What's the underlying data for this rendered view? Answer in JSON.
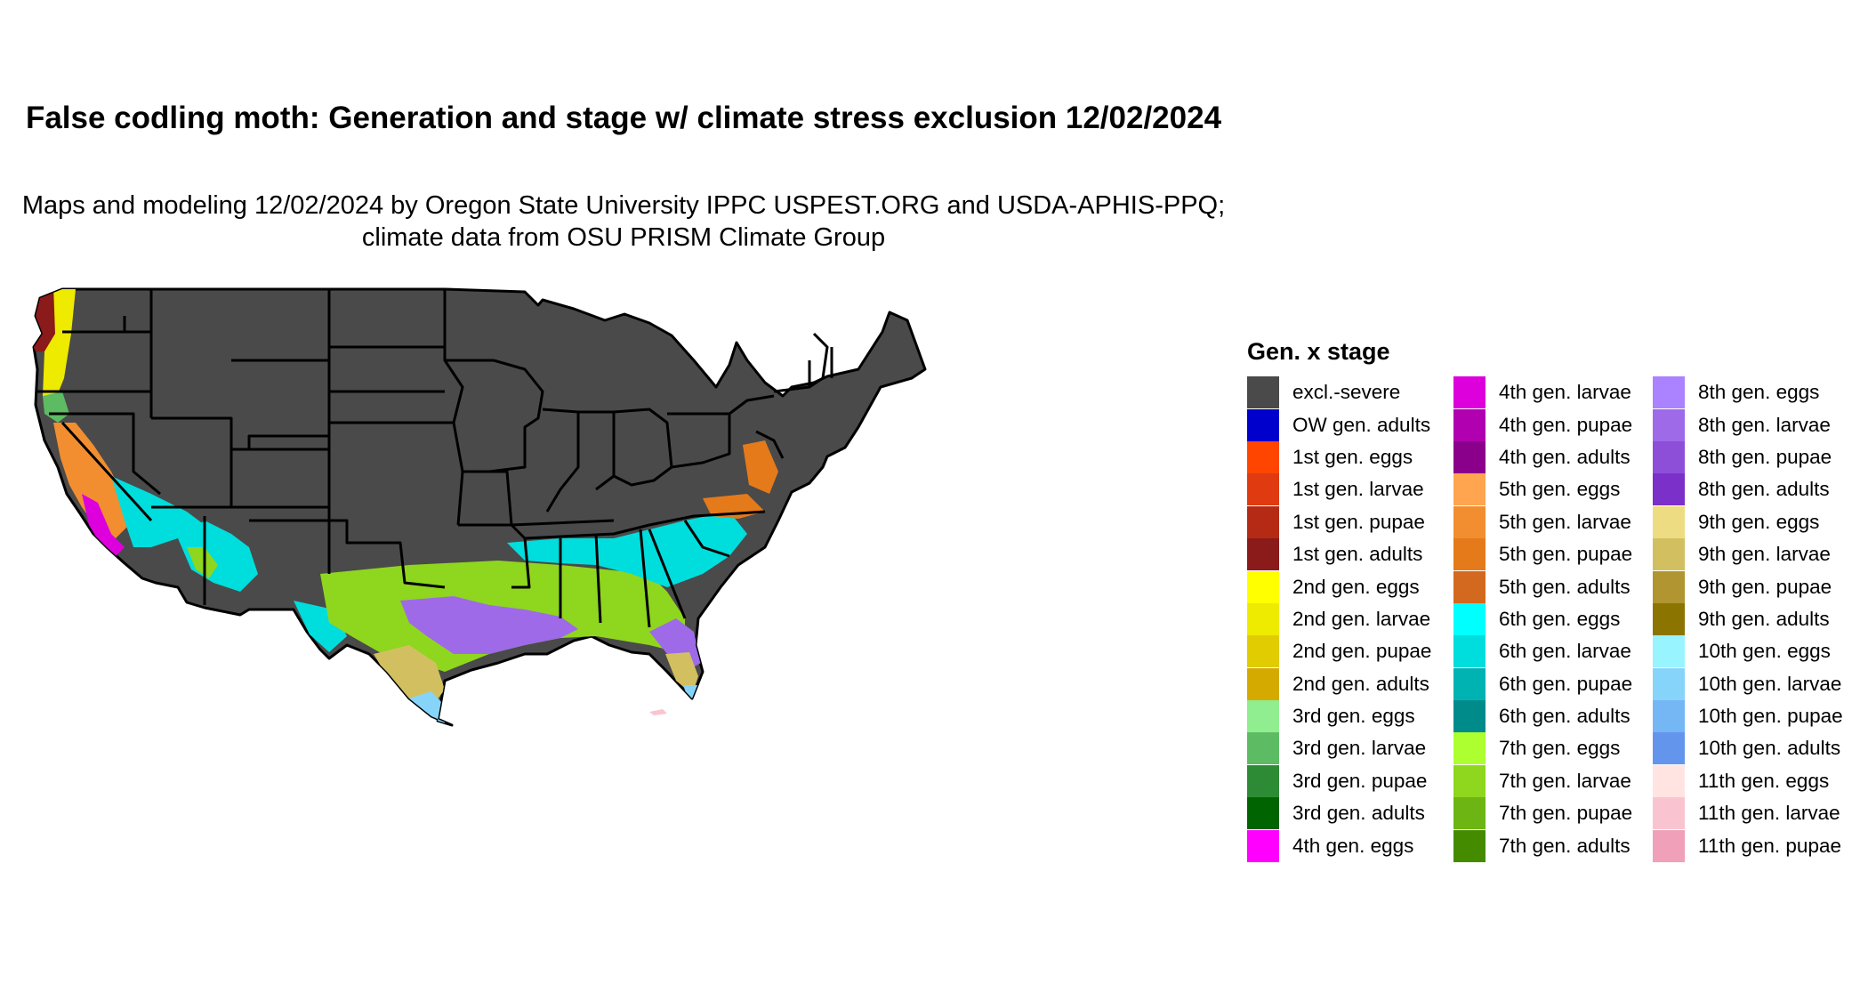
{
  "title": "False codling moth: Generation and stage w/ climate stress exclusion 12/02/2024",
  "subtitle": "Maps and modeling 12/02/2024 by Oregon State University IPPC USPEST.ORG and USDA-APHIS-PPQ; climate data from OSU PRISM Climate Group",
  "legend": {
    "title": "Gen. x stage",
    "items": [
      {
        "label": "excl.-severe",
        "color": "#4a4a4a"
      },
      {
        "label": "OW gen. adults",
        "color": "#0000cd"
      },
      {
        "label": "1st gen. eggs",
        "color": "#ff4500"
      },
      {
        "label": "1st gen. larvae",
        "color": "#e03a10"
      },
      {
        "label": "1st gen. pupae",
        "color": "#b52a15"
      },
      {
        "label": "1st gen. adults",
        "color": "#8b1a1a"
      },
      {
        "label": "2nd gen. eggs",
        "color": "#ffff00"
      },
      {
        "label": "2nd gen. larvae",
        "color": "#eeea00"
      },
      {
        "label": "2nd gen. pupae",
        "color": "#e0cc00"
      },
      {
        "label": "2nd gen. adults",
        "color": "#d4aa00"
      },
      {
        "label": "3rd gen. eggs",
        "color": "#90ee90"
      },
      {
        "label": "3rd gen. larvae",
        "color": "#5dbb63"
      },
      {
        "label": "3rd gen. pupae",
        "color": "#2e8b35"
      },
      {
        "label": "3rd gen. adults",
        "color": "#006400"
      },
      {
        "label": "4th gen. eggs",
        "color": "#ff00ff"
      },
      {
        "label": "4th gen. larvae",
        "color": "#dd00dd"
      },
      {
        "label": "4th gen. pupae",
        "color": "#b000b0"
      },
      {
        "label": "4th gen. adults",
        "color": "#8b008b"
      },
      {
        "label": "5th gen. eggs",
        "color": "#ffa54f"
      },
      {
        "label": "5th gen. larvae",
        "color": "#f28e30"
      },
      {
        "label": "5th gen. pupae",
        "color": "#e57a1a"
      },
      {
        "label": "5th gen. adults",
        "color": "#d2691e"
      },
      {
        "label": "6th gen. eggs",
        "color": "#00ffff"
      },
      {
        "label": "6th gen. larvae",
        "color": "#00dddd"
      },
      {
        "label": "6th gen. pupae",
        "color": "#00b3b3"
      },
      {
        "label": "6th gen. adults",
        "color": "#008b8b"
      },
      {
        "label": "7th gen. eggs",
        "color": "#adff2f"
      },
      {
        "label": "7th gen. larvae",
        "color": "#8fd61e"
      },
      {
        "label": "7th gen. pupae",
        "color": "#6db512"
      },
      {
        "label": "7th gen. adults",
        "color": "#458b00"
      },
      {
        "label": "8th gen. eggs",
        "color": "#ab82ff"
      },
      {
        "label": "8th gen. larvae",
        "color": "#9e6ae8"
      },
      {
        "label": "8th gen. pupae",
        "color": "#8e4fd8"
      },
      {
        "label": "8th gen. adults",
        "color": "#7b30c9"
      },
      {
        "label": "9th gen. eggs",
        "color": "#eedc82"
      },
      {
        "label": "9th gen. larvae",
        "color": "#d2c060"
      },
      {
        "label": "9th gen. pupae",
        "color": "#b09530"
      },
      {
        "label": "9th gen. adults",
        "color": "#8b7500"
      },
      {
        "label": "10th gen. eggs",
        "color": "#98f5ff"
      },
      {
        "label": "10th gen. larvae",
        "color": "#87d4fa"
      },
      {
        "label": "10th gen. pupae",
        "color": "#75b6f5"
      },
      {
        "label": "10th gen. adults",
        "color": "#6495ed"
      },
      {
        "label": "11th gen. eggs",
        "color": "#ffe4e1"
      },
      {
        "label": "11th gen. larvae",
        "color": "#f9c4d0"
      },
      {
        "label": "11th gen. pupae",
        "color": "#f0a0b8"
      }
    ]
  }
}
